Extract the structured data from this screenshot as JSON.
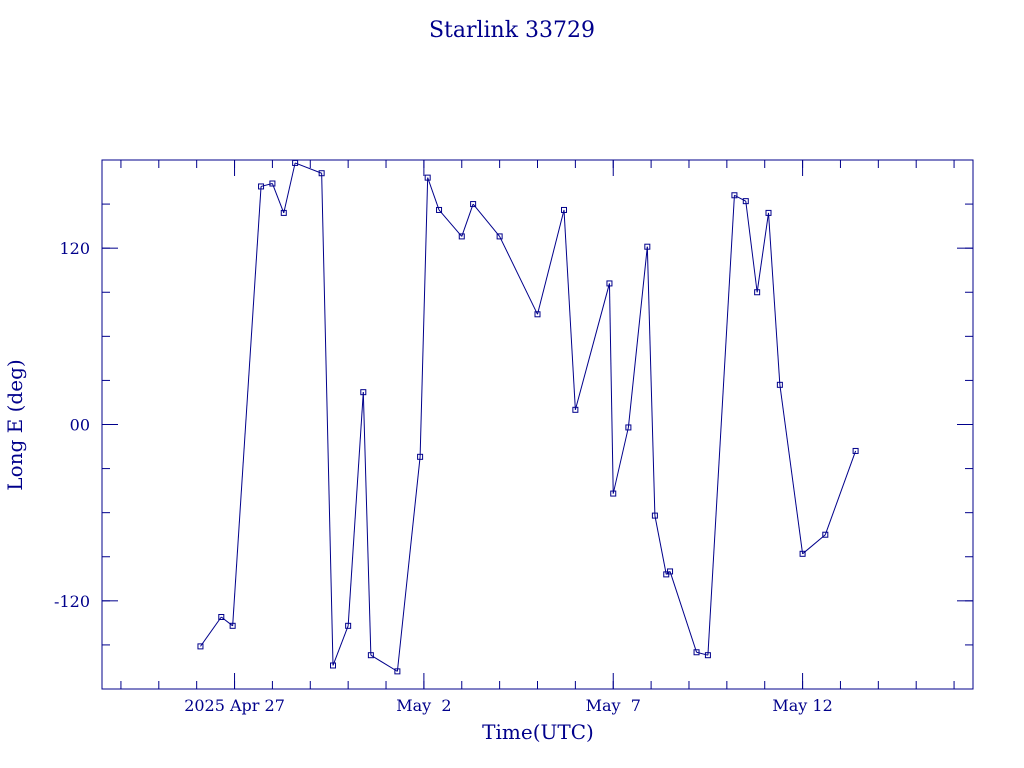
{
  "chart_data": {
    "type": "line",
    "title": "Starlink 33729",
    "xlabel": "Time(UTC)",
    "ylabel": "Long E (deg)",
    "x_unit": "UTC date-time",
    "xlim": [
      "2025-04-23T12:00",
      "2025-05-16T12:00"
    ],
    "ylim": [
      -180,
      180
    ],
    "y_ticks": [
      {
        "value": 120,
        "label": "120"
      },
      {
        "value": 0,
        "label": "00"
      },
      {
        "value": -120,
        "label": "-120"
      }
    ],
    "x_ticks": [
      {
        "value": "2025-04-27T00:00",
        "label": "2025 Apr 27"
      },
      {
        "value": "2025-05-02T00:00",
        "label": "May  2"
      },
      {
        "value": "2025-05-07T00:00",
        "label": "May  7"
      },
      {
        "value": "2025-05-12T00:00",
        "label": "May 12"
      }
    ],
    "x_minor_interval_days": 1,
    "y_minor_interval": 30,
    "grid": false,
    "colors": {
      "line": "#00008b",
      "text": "#00008b",
      "axes": "#00008b"
    },
    "series": [
      {
        "points": [
          {
            "x": "2025-04-26T02:24",
            "y": -151
          },
          {
            "x": "2025-04-26T15:36",
            "y": -131
          },
          {
            "x": "2025-04-26T22:48",
            "y": -137
          },
          {
            "x": "2025-04-27T16:48",
            "y": 162
          },
          {
            "x": "2025-04-28T00:00",
            "y": 164
          },
          {
            "x": "2025-04-28T07:12",
            "y": 144
          },
          {
            "x": "2025-04-28T14:24",
            "y": 178
          },
          {
            "x": "2025-04-29T07:12",
            "y": 171
          },
          {
            "x": "2025-04-29T14:24",
            "y": -164
          },
          {
            "x": "2025-04-30T00:00",
            "y": -137
          },
          {
            "x": "2025-04-30T09:36",
            "y": 22
          },
          {
            "x": "2025-04-30T14:24",
            "y": -157
          },
          {
            "x": "2025-05-01T07:12",
            "y": -168
          },
          {
            "x": "2025-05-01T21:36",
            "y": -22
          },
          {
            "x": "2025-05-02T02:24",
            "y": 168
          },
          {
            "x": "2025-05-02T09:36",
            "y": 146
          },
          {
            "x": "2025-05-03T00:00",
            "y": 128
          },
          {
            "x": "2025-05-03T07:12",
            "y": 150
          },
          {
            "x": "2025-05-04T00:00",
            "y": 128
          },
          {
            "x": "2025-05-05T00:00",
            "y": 75
          },
          {
            "x": "2025-05-05T16:48",
            "y": 146
          },
          {
            "x": "2025-05-06T00:00",
            "y": 10
          },
          {
            "x": "2025-05-06T21:36",
            "y": 96
          },
          {
            "x": "2025-05-07T00:00",
            "y": -47
          },
          {
            "x": "2025-05-07T09:36",
            "y": -2
          },
          {
            "x": "2025-05-07T21:36",
            "y": 121
          },
          {
            "x": "2025-05-08T02:24",
            "y": -62
          },
          {
            "x": "2025-05-08T09:36",
            "y": -102
          },
          {
            "x": "2025-05-08T12:00",
            "y": -100
          },
          {
            "x": "2025-05-09T04:48",
            "y": -155
          },
          {
            "x": "2025-05-09T12:00",
            "y": -157
          },
          {
            "x": "2025-05-10T04:48",
            "y": 156
          },
          {
            "x": "2025-05-10T12:00",
            "y": 152
          },
          {
            "x": "2025-05-10T19:12",
            "y": 90
          },
          {
            "x": "2025-05-11T02:24",
            "y": 144
          },
          {
            "x": "2025-05-11T09:36",
            "y": 27
          },
          {
            "x": "2025-05-12T00:00",
            "y": -88
          },
          {
            "x": "2025-05-12T14:24",
            "y": -75
          },
          {
            "x": "2025-05-13T09:36",
            "y": -18
          }
        ]
      }
    ]
  }
}
